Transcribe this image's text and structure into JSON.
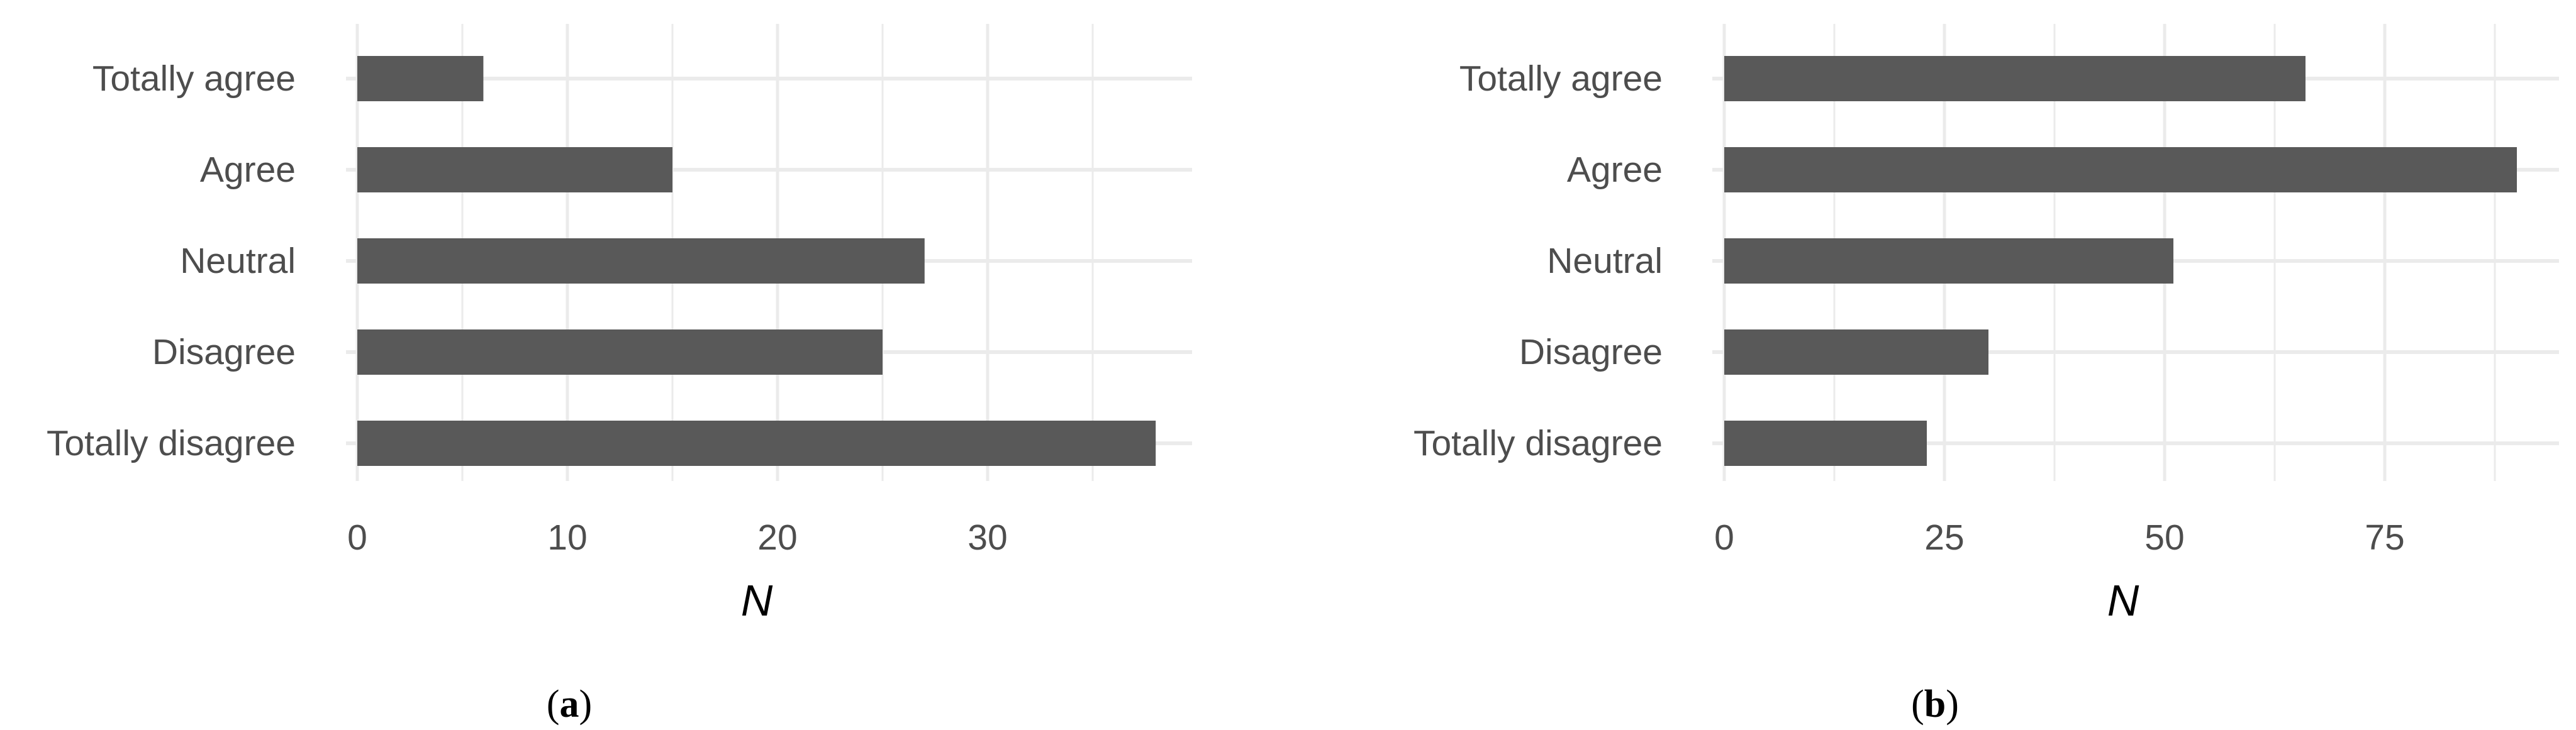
{
  "chart_data": [
    {
      "type": "bar",
      "orientation": "horizontal",
      "panel_label": {
        "open": "(",
        "letter": "a",
        "close": ")"
      },
      "categories": [
        "Totally agree",
        "Agree",
        "Neutral",
        "Disagree",
        "Totally disagree"
      ],
      "values": [
        6,
        15,
        27,
        25,
        38
      ],
      "xlabel": "N",
      "ylabel": "",
      "xlim": [
        0,
        40
      ],
      "xticks": [
        0,
        10,
        20,
        30
      ],
      "xticks_minor": [
        5,
        15,
        25,
        35
      ],
      "grid": true,
      "bar_color": "#595959",
      "grid_color": "#ebebeb"
    },
    {
      "type": "bar",
      "orientation": "horizontal",
      "panel_label": {
        "open": "(",
        "letter": "b",
        "close": ")"
      },
      "categories": [
        "Totally agree",
        "Agree",
        "Neutral",
        "Disagree",
        "Totally disagree"
      ],
      "values": [
        66,
        90,
        51,
        30,
        23
      ],
      "xlabel": "N",
      "ylabel": "",
      "xlim": [
        0,
        95
      ],
      "xticks": [
        0,
        25,
        50,
        75
      ],
      "xticks_minor": [
        12.5,
        37.5,
        62.5,
        87.5
      ],
      "grid": true,
      "bar_color": "#595959",
      "grid_color": "#ebebeb"
    }
  ]
}
